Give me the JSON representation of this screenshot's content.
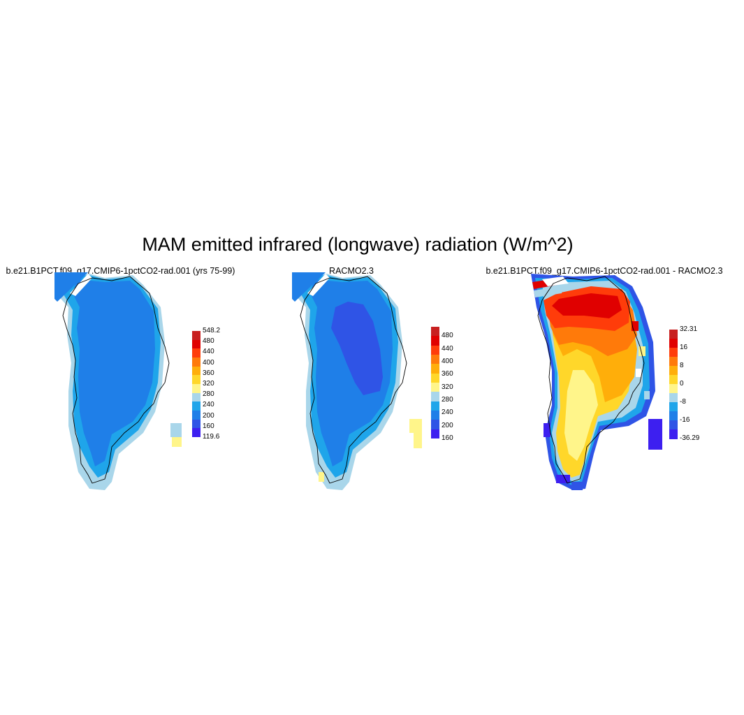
{
  "title": "MAM emitted infrared (longwave) radiation (W/m^2)",
  "panels": [
    {
      "title": "b.e21.B1PCT.f09_g17.CMIP6-1pctCO2-rad.001 (yrs 75-99)",
      "colorbar": {
        "colors": [
          "#3d1ff0",
          "#2f54e6",
          "#1f7fe8",
          "#1fa5ea",
          "#a9d6ea",
          "#fff58a",
          "#ffd72a",
          "#ffae0a",
          "#ff7a0a",
          "#ff3c0a",
          "#e00000",
          "#c82020"
        ],
        "labels": [
          "548.2",
          "480",
          "440",
          "400",
          "360",
          "320",
          "280",
          "240",
          "200",
          "160",
          "119.6"
        ]
      }
    },
    {
      "title": "RACMO2.3",
      "colorbar": {
        "colors": [
          "#3d1ff0",
          "#2f54e6",
          "#1f7fe8",
          "#1fa5ea",
          "#a9d6ea",
          "#fff58a",
          "#ffd72a",
          "#ffae0a",
          "#ff7a0a",
          "#ff3c0a",
          "#e00000",
          "#c82020"
        ],
        "labels": [
          "480",
          "440",
          "400",
          "360",
          "320",
          "280",
          "240",
          "200",
          "160"
        ]
      }
    },
    {
      "title": "b.e21.B1PCT.f09_g17.CMIP6-1pctCO2-rad.001 - RACMO2.3",
      "colorbar": {
        "colors": [
          "#3d1ff0",
          "#2f54e6",
          "#1f7fe8",
          "#1fa5ea",
          "#a9d6ea",
          "#fff58a",
          "#ffd72a",
          "#ffae0a",
          "#ff7a0a",
          "#ff3c0a",
          "#e00000",
          "#c82020"
        ],
        "labels": [
          "32.31",
          "16",
          "8",
          "0",
          "-8",
          "-16",
          "-36.29"
        ]
      }
    }
  ]
}
